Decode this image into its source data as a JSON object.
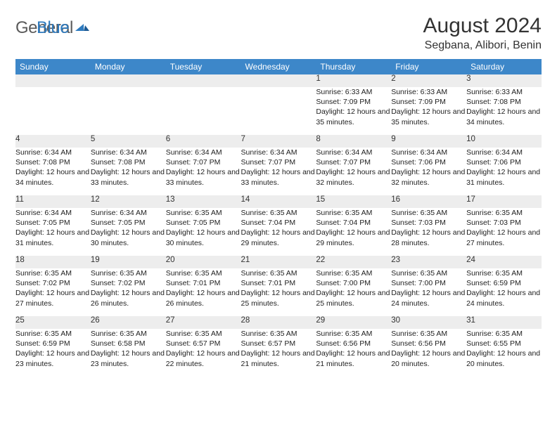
{
  "brand": {
    "word1": "General",
    "word2": "Blue",
    "word1_color": "#5a5a5a",
    "word2_color": "#2f7bbf",
    "mark_color": "#2f7bbf"
  },
  "title": "August 2024",
  "location": "Segbana, Alibori, Benin",
  "header_bg": "#3d87c9",
  "header_fg": "#ffffff",
  "daynum_bg": "#ededed",
  "row_divider_color": "#3d6a94",
  "text_color": "#222222",
  "fontsize_header": 12,
  "fontsize_daynum": 11.5,
  "fontsize_details": 10.5,
  "weekdays": [
    "Sunday",
    "Monday",
    "Tuesday",
    "Wednesday",
    "Thursday",
    "Friday",
    "Saturday"
  ],
  "weeks": [
    {
      "nums": [
        "",
        "",
        "",
        "",
        "1",
        "2",
        "3"
      ],
      "cells": [
        "",
        "",
        "",
        "",
        "Sunrise: 6:33 AM\nSunset: 7:09 PM\nDaylight: 12 hours and 35 minutes.",
        "Sunrise: 6:33 AM\nSunset: 7:09 PM\nDaylight: 12 hours and 35 minutes.",
        "Sunrise: 6:33 AM\nSunset: 7:08 PM\nDaylight: 12 hours and 34 minutes."
      ]
    },
    {
      "nums": [
        "4",
        "5",
        "6",
        "7",
        "8",
        "9",
        "10"
      ],
      "cells": [
        "Sunrise: 6:34 AM\nSunset: 7:08 PM\nDaylight: 12 hours and 34 minutes.",
        "Sunrise: 6:34 AM\nSunset: 7:08 PM\nDaylight: 12 hours and 33 minutes.",
        "Sunrise: 6:34 AM\nSunset: 7:07 PM\nDaylight: 12 hours and 33 minutes.",
        "Sunrise: 6:34 AM\nSunset: 7:07 PM\nDaylight: 12 hours and 33 minutes.",
        "Sunrise: 6:34 AM\nSunset: 7:07 PM\nDaylight: 12 hours and 32 minutes.",
        "Sunrise: 6:34 AM\nSunset: 7:06 PM\nDaylight: 12 hours and 32 minutes.",
        "Sunrise: 6:34 AM\nSunset: 7:06 PM\nDaylight: 12 hours and 31 minutes."
      ]
    },
    {
      "nums": [
        "11",
        "12",
        "13",
        "14",
        "15",
        "16",
        "17"
      ],
      "cells": [
        "Sunrise: 6:34 AM\nSunset: 7:05 PM\nDaylight: 12 hours and 31 minutes.",
        "Sunrise: 6:34 AM\nSunset: 7:05 PM\nDaylight: 12 hours and 30 minutes.",
        "Sunrise: 6:35 AM\nSunset: 7:05 PM\nDaylight: 12 hours and 30 minutes.",
        "Sunrise: 6:35 AM\nSunset: 7:04 PM\nDaylight: 12 hours and 29 minutes.",
        "Sunrise: 6:35 AM\nSunset: 7:04 PM\nDaylight: 12 hours and 29 minutes.",
        "Sunrise: 6:35 AM\nSunset: 7:03 PM\nDaylight: 12 hours and 28 minutes.",
        "Sunrise: 6:35 AM\nSunset: 7:03 PM\nDaylight: 12 hours and 27 minutes."
      ]
    },
    {
      "nums": [
        "18",
        "19",
        "20",
        "21",
        "22",
        "23",
        "24"
      ],
      "cells": [
        "Sunrise: 6:35 AM\nSunset: 7:02 PM\nDaylight: 12 hours and 27 minutes.",
        "Sunrise: 6:35 AM\nSunset: 7:02 PM\nDaylight: 12 hours and 26 minutes.",
        "Sunrise: 6:35 AM\nSunset: 7:01 PM\nDaylight: 12 hours and 26 minutes.",
        "Sunrise: 6:35 AM\nSunset: 7:01 PM\nDaylight: 12 hours and 25 minutes.",
        "Sunrise: 6:35 AM\nSunset: 7:00 PM\nDaylight: 12 hours and 25 minutes.",
        "Sunrise: 6:35 AM\nSunset: 7:00 PM\nDaylight: 12 hours and 24 minutes.",
        "Sunrise: 6:35 AM\nSunset: 6:59 PM\nDaylight: 12 hours and 24 minutes."
      ]
    },
    {
      "nums": [
        "25",
        "26",
        "27",
        "28",
        "29",
        "30",
        "31"
      ],
      "cells": [
        "Sunrise: 6:35 AM\nSunset: 6:59 PM\nDaylight: 12 hours and 23 minutes.",
        "Sunrise: 6:35 AM\nSunset: 6:58 PM\nDaylight: 12 hours and 23 minutes.",
        "Sunrise: 6:35 AM\nSunset: 6:57 PM\nDaylight: 12 hours and 22 minutes.",
        "Sunrise: 6:35 AM\nSunset: 6:57 PM\nDaylight: 12 hours and 21 minutes.",
        "Sunrise: 6:35 AM\nSunset: 6:56 PM\nDaylight: 12 hours and 21 minutes.",
        "Sunrise: 6:35 AM\nSunset: 6:56 PM\nDaylight: 12 hours and 20 minutes.",
        "Sunrise: 6:35 AM\nSunset: 6:55 PM\nDaylight: 12 hours and 20 minutes."
      ]
    }
  ]
}
